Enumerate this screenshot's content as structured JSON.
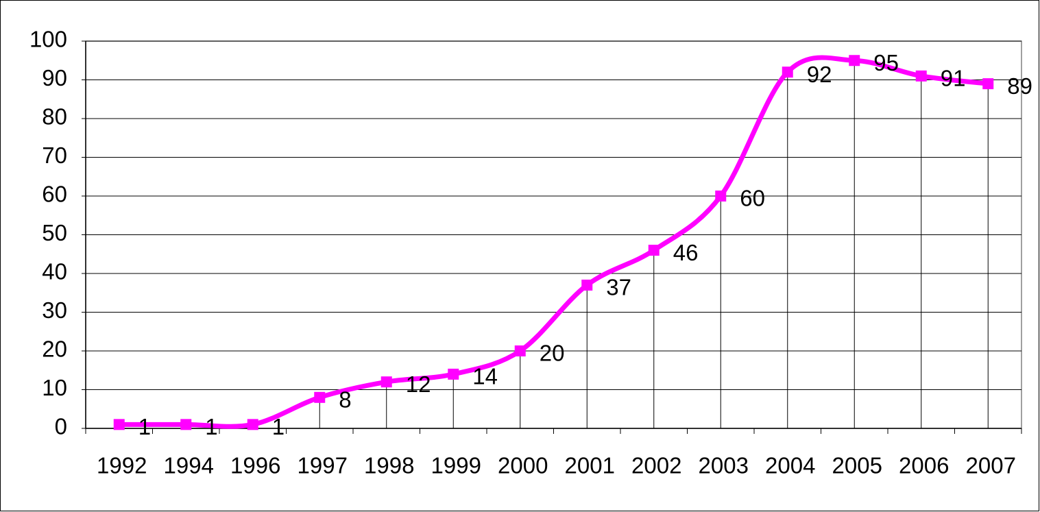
{
  "chart_data": {
    "type": "line",
    "categories": [
      "1992",
      "1994",
      "1996",
      "1997",
      "1998",
      "1999",
      "2000",
      "2001",
      "2002",
      "2003",
      "2004",
      "2005",
      "2006",
      "2007"
    ],
    "values": [
      1,
      1,
      1,
      8,
      12,
      14,
      20,
      37,
      46,
      60,
      92,
      95,
      91,
      89
    ],
    "color": "#ff00ff",
    "ylim": [
      0,
      100
    ],
    "yticks": [
      0,
      10,
      20,
      30,
      40,
      50,
      60,
      70,
      80,
      90,
      100
    ],
    "grid": true,
    "drop_lines": true,
    "smooth": true,
    "data_labels": true
  }
}
